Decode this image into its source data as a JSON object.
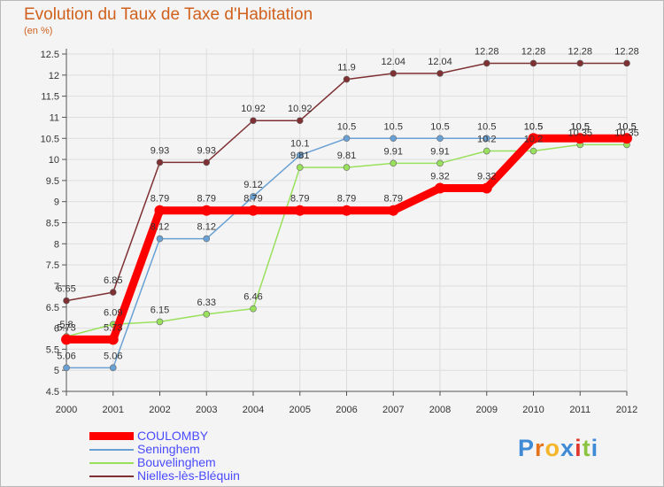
{
  "chart_data": {
    "type": "line",
    "title": "Evolution du Taux de Taxe d'Habitation",
    "subtitle": "(en %)",
    "xlabel": "",
    "ylabel": "",
    "x": [
      "2000",
      "2001",
      "2002",
      "2003",
      "2004",
      "2005",
      "2006",
      "2007",
      "2008",
      "2009",
      "2010",
      "2011",
      "2012"
    ],
    "ylim": [
      4.5,
      12.5
    ],
    "yticks": [
      "4.5",
      "5",
      "5.5",
      "6",
      "6.5",
      "7",
      "7.5",
      "8",
      "8.5",
      "9",
      "9.5",
      "10",
      "10.5",
      "11",
      "11.5",
      "12",
      "12.5"
    ],
    "grid": true,
    "legend_position": "bottom-left",
    "series": [
      {
        "name": "COULOMBY",
        "color": "#ff0000",
        "values": [
          5.73,
          5.73,
          8.79,
          8.79,
          8.79,
          8.79,
          8.79,
          8.79,
          9.32,
          9.32,
          10.5,
          10.5,
          10.5
        ],
        "labels": [
          "5.73",
          "5.73",
          "8.79",
          "8.79",
          "8.79",
          "8.79",
          "8.79",
          "8.79",
          "9.32",
          "9.32",
          "10.5",
          "10.5",
          "10.5"
        ]
      },
      {
        "name": "Seninghem",
        "color": "#6aa1d4",
        "values": [
          5.06,
          5.06,
          8.12,
          8.12,
          9.12,
          10.1,
          10.5,
          10.5,
          10.5,
          10.5,
          10.5,
          10.5,
          10.5
        ],
        "labels": [
          "5.06",
          "5.06",
          "8.12",
          "8.12",
          "9.12",
          "10.1",
          "10.5",
          "10.5",
          "10.5",
          "10.5",
          "10.5",
          "10.5",
          "10.5"
        ]
      },
      {
        "name": "Bouvelinghem",
        "color": "#99e05c",
        "values": [
          5.8,
          6.09,
          6.15,
          6.33,
          6.46,
          9.81,
          9.81,
          9.91,
          9.91,
          10.2,
          10.2,
          10.35,
          10.35
        ],
        "labels": [
          "5.8",
          "6.09",
          "6.15",
          "6.33",
          "6.46",
          "9.81",
          "9.81",
          "9.91",
          "9.91",
          "10.2",
          "10.2",
          "10.35",
          "10.35"
        ]
      },
      {
        "name": "Nielles-lès-Bléquin",
        "color": "#7e3033",
        "values": [
          6.65,
          6.85,
          9.93,
          9.93,
          10.92,
          10.92,
          11.9,
          12.04,
          12.04,
          12.28,
          12.28,
          12.28,
          12.28
        ],
        "labels": [
          "6.65",
          "6.85",
          "9.93",
          "9.93",
          "10.92",
          "10.92",
          "11.9",
          "12.04",
          "12.04",
          "12.28",
          "12.28",
          "12.28",
          "12.28"
        ]
      }
    ]
  },
  "logo": {
    "letters": [
      "P",
      "r",
      "o",
      "x",
      "i",
      "t",
      "i"
    ],
    "colors": [
      "#3f8bd6",
      "#e5731d",
      "#f3b628",
      "#3f8bd6",
      "#e03a2f",
      "#8bc53f",
      "#3f8bd6"
    ]
  }
}
